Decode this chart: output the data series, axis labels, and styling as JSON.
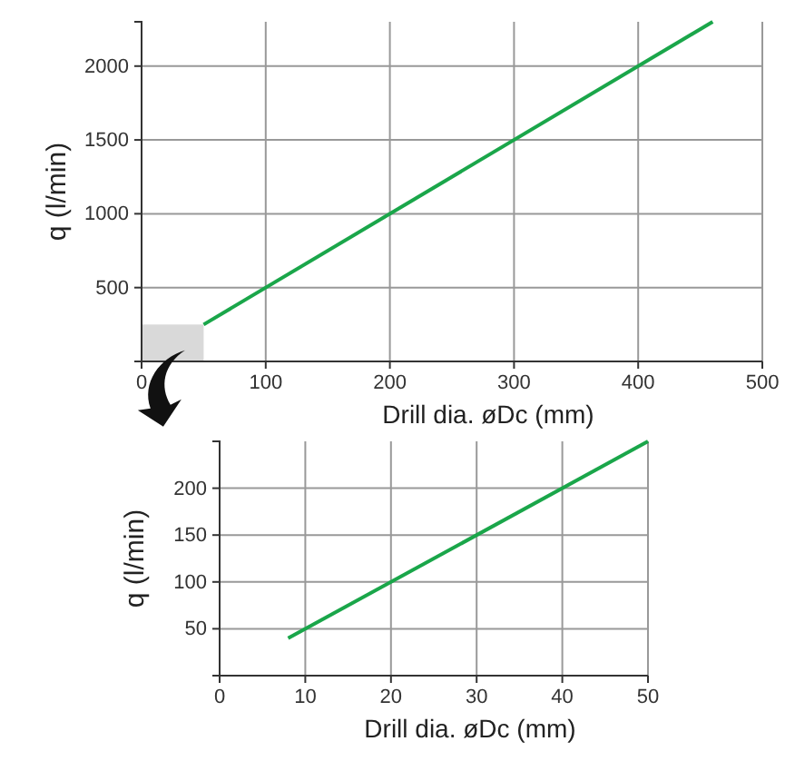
{
  "chart_data": [
    {
      "type": "line",
      "xlabel": "Drill dia. øDc (mm)",
      "ylabel": "q (l/min)",
      "xlim": [
        0,
        500
      ],
      "ylim": [
        0,
        2300
      ],
      "xticks": [
        0,
        100,
        200,
        300,
        400,
        500
      ],
      "yticks": [
        500,
        1000,
        1500,
        2000
      ],
      "grid": true,
      "series": [
        {
          "color": "#1aa64a",
          "x": [
            50,
            460
          ],
          "values": [
            250,
            2300
          ]
        }
      ]
    },
    {
      "type": "line",
      "xlabel": "Drill dia. øDc (mm)",
      "ylabel": "q (l/min)",
      "xlim": [
        0,
        50
      ],
      "ylim": [
        0,
        250
      ],
      "xticks": [
        0,
        10,
        20,
        30,
        40,
        50
      ],
      "yticks": [
        50,
        100,
        150,
        200
      ],
      "grid": true,
      "series": [
        {
          "color": "#1aa64a",
          "x": [
            8,
            50
          ],
          "values": [
            40,
            250
          ]
        }
      ]
    }
  ]
}
